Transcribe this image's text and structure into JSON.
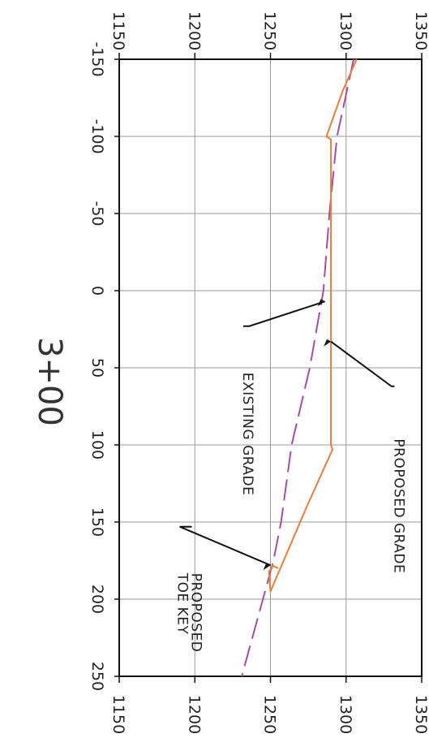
{
  "chart_data": {
    "type": "line",
    "station_label": "3+00",
    "offset_ticks": [
      "-150",
      "-100",
      "-50",
      "0",
      "50",
      "100",
      "150",
      "200",
      "250"
    ],
    "elevation_ticks": [
      "1150",
      "1200",
      "1250",
      "1300",
      "1350"
    ],
    "offset_range": [
      -150,
      250
    ],
    "elevation_range": [
      1150,
      1350
    ],
    "grid": true,
    "series": [
      {
        "name": "EXISTING GRADE",
        "style": "dashed",
        "color": "#a64ca6",
        "points": [
          [
            -150,
            1305
          ],
          [
            -100,
            1294
          ],
          [
            -50,
            1289
          ],
          [
            0,
            1285
          ],
          [
            50,
            1276
          ],
          [
            100,
            1264
          ],
          [
            150,
            1257
          ],
          [
            175,
            1252
          ],
          [
            200,
            1245
          ],
          [
            250,
            1231
          ]
        ]
      },
      {
        "name": "PROPOSED GRADE",
        "style": "solid",
        "color": "#e87e3a",
        "points": [
          [
            -150,
            1307
          ],
          [
            -130,
            1298
          ],
          [
            -100,
            1287
          ],
          [
            -98,
            1290
          ],
          [
            0,
            1290
          ],
          [
            100,
            1290
          ],
          [
            103,
            1291
          ],
          [
            140,
            1274
          ],
          [
            195,
            1250
          ],
          [
            182,
            1249
          ],
          [
            180,
            1251
          ],
          [
            178,
            1251
          ],
          [
            180,
            1255
          ]
        ]
      }
    ],
    "annotations": [
      {
        "id": "existing",
        "line1": "EXISTING GRADE",
        "line2": "",
        "target": [
          7,
          1286
        ],
        "elbow": [
          23,
          1236
        ],
        "text_at": [
          53,
          1232
        ]
      },
      {
        "id": "proposed",
        "line1": "PROPOSED GRADE",
        "line2": "",
        "target": [
          33,
          1290
        ],
        "elbow": [
          62,
          1330
        ],
        "text_at": [
          96,
          1332
        ]
      },
      {
        "id": "toekey",
        "line1": "PROPOSED",
        "line2": "TOE KEY",
        "target": [
          178,
          1250
        ],
        "elbow": [
          153,
          1190
        ],
        "text_at": [
          183,
          1198
        ]
      }
    ]
  }
}
